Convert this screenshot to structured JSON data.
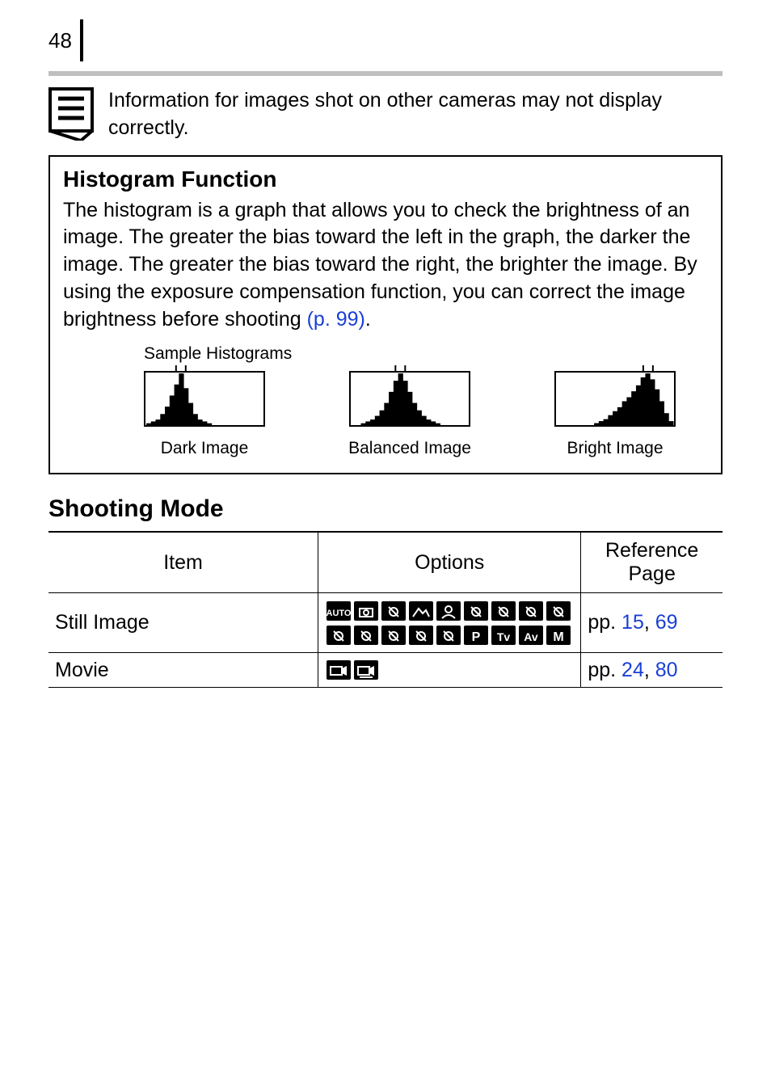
{
  "page_number": "48",
  "note_text": "Information for images shot on other cameras may not display correctly.",
  "histogram": {
    "heading": "Histogram Function",
    "body_pre": "The histogram is a graph that allows you to check the brightness of an image. The greater the bias toward the left in the graph, the darker the image. The greater the bias toward the right, the brighter the image. By using the exposure compensation function, you can correct the image brightness before shooting ",
    "body_link": "(p. 99)",
    "body_post": ".",
    "samples_label": "Sample Histograms",
    "captions": {
      "dark": "Dark Image",
      "balanced": "Balanced Image",
      "bright": "Bright Image"
    },
    "charts": {
      "dark": {
        "values": [
          1,
          2,
          3,
          6,
          10,
          16,
          22,
          28,
          20,
          12,
          6,
          3,
          2,
          1,
          0,
          0,
          0,
          0,
          0,
          0,
          0,
          0,
          0,
          0,
          0
        ],
        "peak_index": 7
      },
      "balanced": {
        "values": [
          0,
          0,
          1,
          2,
          3,
          5,
          8,
          12,
          18,
          24,
          28,
          24,
          18,
          12,
          8,
          5,
          3,
          2,
          1,
          0,
          0,
          0,
          0,
          0,
          0
        ],
        "peak_index": 10
      },
      "bright": {
        "values": [
          0,
          0,
          0,
          0,
          0,
          0,
          0,
          0,
          1,
          2,
          3,
          5,
          7,
          9,
          12,
          14,
          17,
          20,
          24,
          26,
          23,
          18,
          12,
          6,
          2
        ],
        "peak_index": 19
      }
    },
    "chart_style": {
      "width": 150,
      "height": 76,
      "border_color": "#000000",
      "border_width": 2,
      "bar_color": "#000000",
      "tick_color": "#000000",
      "tick_height": 8
    }
  },
  "shooting_mode": {
    "heading": "Shooting Mode",
    "columns": {
      "item": "Item",
      "options": "Options",
      "ref": "Reference Page"
    },
    "rows": [
      {
        "item": "Still Image",
        "icons": [
          "auto-mode-icon",
          "camera-mode-icon",
          "easy-mode-icon",
          "landscape-mode-icon",
          "portrait-mode-icon",
          "foliage-mode-icon",
          "night-scene-mode-icon",
          "sports-mode-icon",
          "indoor-mode-icon",
          "fireworks-mode-icon",
          "snow-mode-icon",
          "beach-mode-icon",
          "color-swap-mode-icon",
          "stitch-mode-icon",
          "program-p-mode-icon",
          "shutter-tv-mode-icon",
          "aperture-av-mode-icon",
          "manual-m-mode-icon"
        ],
        "ref_prefix": "pp. ",
        "ref_links": [
          "15",
          "69"
        ]
      },
      {
        "item": "Movie",
        "icons": [
          "movie-mode-icon",
          "timelapse-movie-icon"
        ],
        "ref_prefix": "pp. ",
        "ref_links": [
          "24",
          "80"
        ]
      }
    ]
  },
  "colors": {
    "link": "#1a3fd6",
    "rule_grey": "#bfbfbf"
  }
}
